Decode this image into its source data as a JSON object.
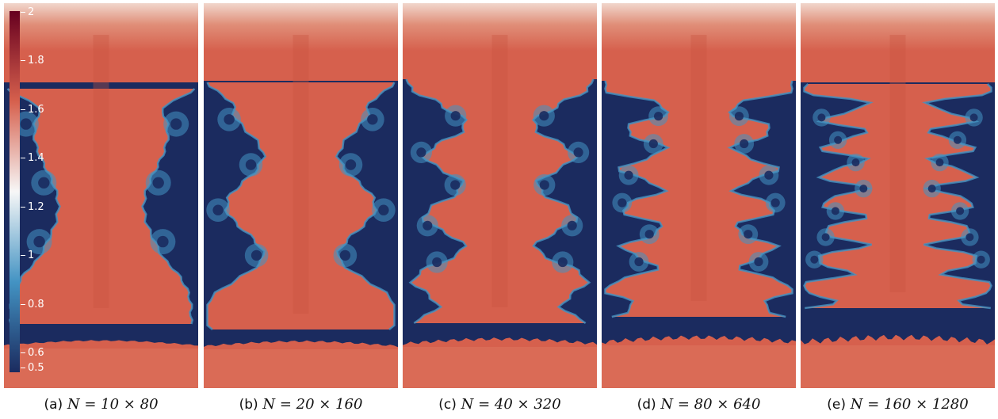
{
  "figure": {
    "panels": [
      {
        "tag": "(a)",
        "label": "N = 10 × 80"
      },
      {
        "tag": "(b)",
        "label": "N = 20 × 160"
      },
      {
        "tag": "(c)",
        "label": "N = 40 × 320"
      },
      {
        "tag": "(d)",
        "label": "N = 80 × 640"
      },
      {
        "tag": "(e)",
        "label": "N = 160 × 1280"
      }
    ],
    "colorbar": {
      "ticks": [
        "2",
        "1.8",
        "1.6",
        "1.4",
        "1.2",
        "1",
        "0.8",
        "0.6",
        "0.5"
      ],
      "min": 0.5,
      "max": 2
    },
    "colors": {
      "high": "#67001f",
      "upper": "#d6604d",
      "mid": "#f7f7f7",
      "lower": "#4393c3",
      "low": "#1b2b5f"
    }
  }
}
